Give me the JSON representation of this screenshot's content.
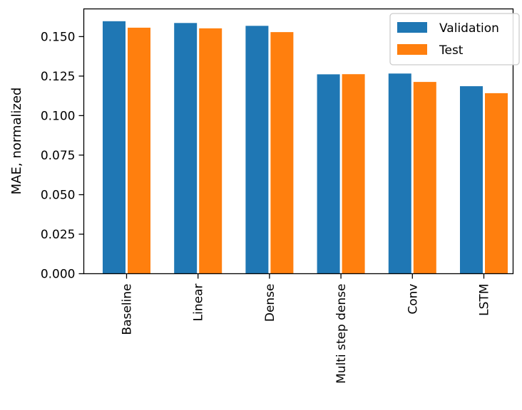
{
  "chart_data": {
    "type": "bar",
    "title": "",
    "xlabel": "",
    "ylabel": "MAE, normalized",
    "ylim": [
      0,
      0.1675
    ],
    "yticks": [
      0.0,
      0.025,
      0.05,
      0.075,
      0.1,
      0.125,
      0.15
    ],
    "ytick_labels": [
      "0.000",
      "0.025",
      "0.050",
      "0.075",
      "0.100",
      "0.125",
      "0.150"
    ],
    "categories": [
      "Baseline",
      "Linear",
      "Dense",
      "Multi step dense",
      "Conv",
      "LSTM"
    ],
    "series": [
      {
        "name": "Validation",
        "color": "#1f77b4",
        "values": [
          0.1597,
          0.1586,
          0.1568,
          0.1261,
          0.1266,
          0.1186
        ]
      },
      {
        "name": "Test",
        "color": "#ff7f0e",
        "values": [
          0.1556,
          0.1552,
          0.1528,
          0.1262,
          0.1213,
          0.1142
        ]
      }
    ],
    "legend_position": "top-right",
    "grid": false
  }
}
